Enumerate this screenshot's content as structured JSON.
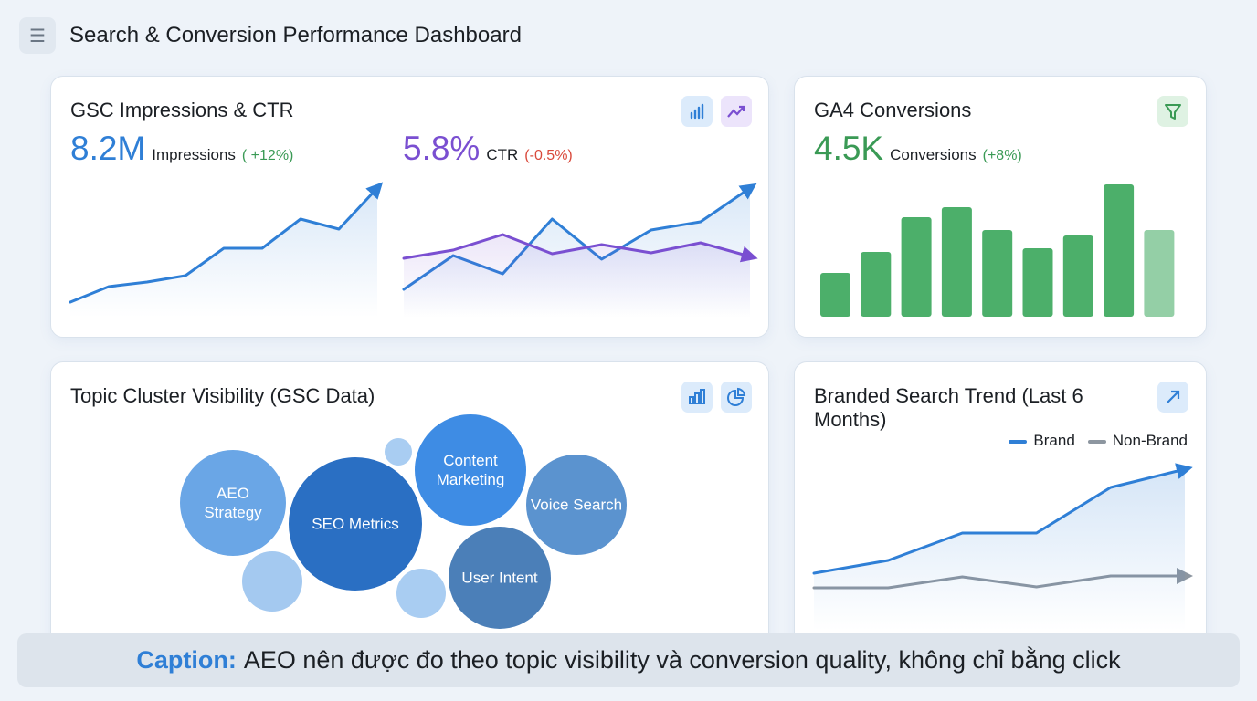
{
  "header": {
    "title": "Search & Conversion Performance Dashboard",
    "menu_icon": "list-icon"
  },
  "colors": {
    "blue": "#2f7fd6",
    "purple": "#7a4fd1",
    "green": "#4caf6a",
    "red": "#d9493b",
    "gray": "#8d96a0"
  },
  "gsc_card": {
    "title": "GSC Impressions & CTR",
    "icons": [
      "bar-chart-icon",
      "trending-up-icon"
    ],
    "impressions": {
      "value": "8.2M",
      "label": "Impressions",
      "change": "( +12%)"
    },
    "ctr": {
      "value": "5.8%",
      "label": "CTR",
      "change": "(-0.5%)"
    }
  },
  "ga4_card": {
    "title": "GA4 Conversions",
    "icon": "filter-icon",
    "kpi": {
      "value": "4.5K",
      "label": "Conversions",
      "change": "(+8%)"
    }
  },
  "topic_card": {
    "title": "Topic Cluster Visibility (GSC Data)",
    "icons": [
      "bar-chart-icon",
      "pie-chart-icon"
    ],
    "bubbles": [
      "AEO\nStrategy",
      "SEO Metrics",
      "Content\nMarketing",
      "Voice Search",
      "User Intent",
      "",
      "",
      ""
    ]
  },
  "brand_card": {
    "title": "Branded Search Trend (Last 6 Months)",
    "icon": "arrow-up-right-icon",
    "legend": [
      "Brand",
      "Non-Brand"
    ]
  },
  "caption": {
    "label": "Caption:",
    "text": "AEO nên được đo theo topic visibility và conversion quality, không chỉ bằng click"
  },
  "chart_data": [
    {
      "type": "area",
      "series": [
        {
          "values": [
            17,
            34,
            39,
            46,
            76,
            76,
            108,
            97,
            142
          ]
        }
      ]
    },
    {
      "type": "line",
      "series": [
        {
          "values": [
            31,
            68,
            48,
            108,
            64,
            96,
            105,
            142
          ]
        },
        {
          "values": [
            65,
            74,
            91,
            70,
            80,
            71,
            82,
            67
          ]
        }
      ]
    },
    {
      "type": "bar",
      "values": [
        48,
        71,
        109,
        120,
        95,
        75,
        89,
        145,
        95
      ],
      "highlighted_index": 7,
      "faded_index": 8
    },
    {
      "type": "area",
      "series": [
        {
          "name": "Brand",
          "values": [
            63,
            77,
            107,
            107,
            157,
            177
          ]
        },
        {
          "name": "Non-Brand",
          "values": [
            47,
            47,
            59,
            48,
            60,
            60
          ]
        }
      ]
    }
  ]
}
